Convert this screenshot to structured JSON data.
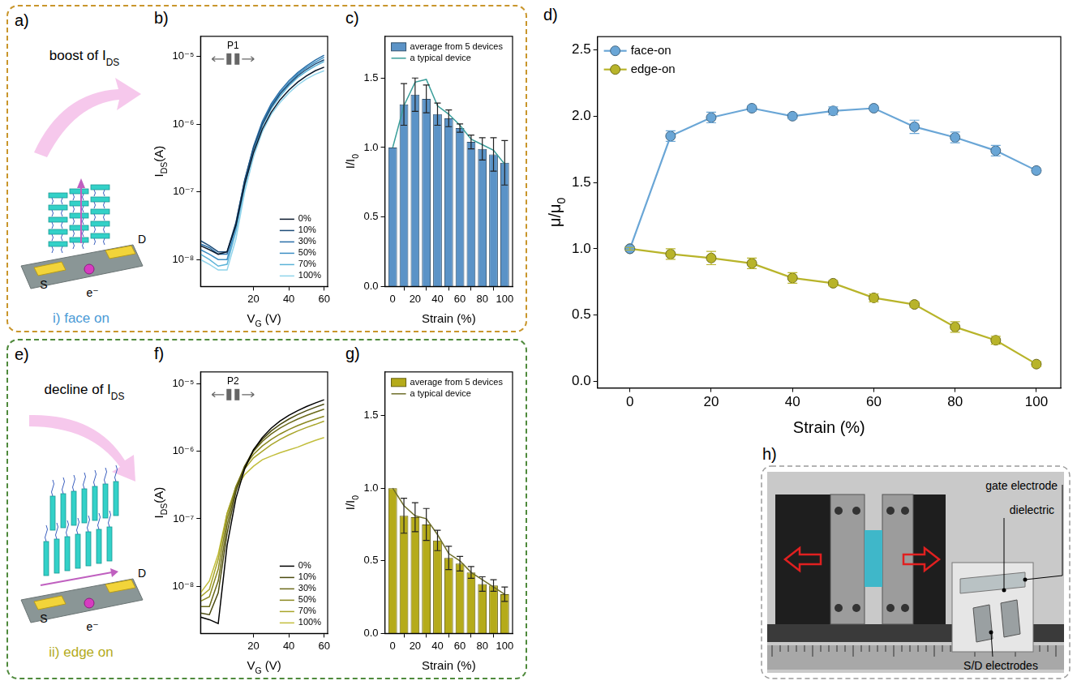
{
  "chart_data": [
    {
      "panel": "b)",
      "type": "line",
      "log": "y",
      "grid": false,
      "legend": "lower right",
      "annotations": [
        "P1"
      ],
      "xlabel": {
        "text": "V",
        "subscript": "G",
        "suffix": " (V)"
      },
      "ylabel": {
        "text": "I",
        "subscript": "DS",
        "suffix": "(A)"
      },
      "x": [
        -10,
        -5,
        0,
        5,
        10,
        15,
        20,
        25,
        30,
        35,
        40,
        45,
        50,
        55,
        60
      ],
      "xlim": [
        -10,
        62
      ],
      "xticks": [
        20,
        40,
        60
      ],
      "ylim": [
        4e-09,
        2e-05
      ],
      "yticks": [
        {
          "value": 1e-08,
          "label": "10⁻⁸"
        },
        {
          "value": 1e-07,
          "label": "10⁻⁷"
        },
        {
          "value": 1e-06,
          "label": "10⁻⁶"
        },
        {
          "value": 1e-05,
          "label": "10⁻⁵"
        }
      ],
      "series": [
        {
          "name": "0%",
          "color": "#0b1a2e",
          "values": [
            1.6e-08,
            1.4e-08,
            1.2e-08,
            1.3e-08,
            3.2e-08,
            1.3e-07,
            3.8e-07,
            8.5e-07,
            1.5e-06,
            2.3e-06,
            3.2e-06,
            4.2e-06,
            5.2e-06,
            6.2e-06,
            7e-06
          ]
        },
        {
          "name": "10%",
          "color": "#1f4e79",
          "values": [
            1.9e-08,
            1.6e-08,
            1.3e-08,
            1.3e-08,
            3.5e-08,
            1.5e-07,
            4.5e-07,
            1e-06,
            1.8e-06,
            2.8e-06,
            3.9e-06,
            5.2e-06,
            6.5e-06,
            7.8e-06,
            9e-06
          ]
        },
        {
          "name": "30%",
          "color": "#2a6fa8",
          "values": [
            1.7e-08,
            1.5e-08,
            1.2e-08,
            1.2e-08,
            3.4e-08,
            1.5e-07,
            4.7e-07,
            1.1e-06,
            2e-06,
            3.1e-06,
            4.4e-06,
            5.8e-06,
            7.3e-06,
            8.9e-06,
            1.05e-05
          ]
        },
        {
          "name": "50%",
          "color": "#3d8fc4",
          "values": [
            1.4e-08,
            1.2e-08,
            1e-08,
            1e-08,
            3e-08,
            1.4e-07,
            4.4e-07,
            1e-06,
            1.9e-06,
            2.9e-06,
            4.1e-06,
            5.5e-06,
            6.9e-06,
            8.3e-06,
            9.8e-06
          ]
        },
        {
          "name": "70%",
          "color": "#5bb3d8",
          "values": [
            1.2e-08,
            1e-08,
            8e-09,
            8.5e-09,
            2.6e-08,
            1.2e-07,
            4e-07,
            9.5e-07,
            1.7e-06,
            2.6e-06,
            3.7e-06,
            4.9e-06,
            6.1e-06,
            7.3e-06,
            8.5e-06
          ]
        },
        {
          "name": "100%",
          "color": "#8fd3ea",
          "values": [
            1e-08,
            8.5e-09,
            7e-09,
            7e-09,
            2e-08,
            1e-07,
            3.3e-07,
            7.8e-07,
            1.4e-06,
            2.1e-06,
            2.9e-06,
            3.8e-06,
            4.7e-06,
            5.5e-06,
            6.2e-06
          ]
        }
      ]
    },
    {
      "panel": "c)",
      "type": "bar",
      "grid": false,
      "legend": "upper left",
      "xlabel": "Strain (%)",
      "ylabel": {
        "text": "I/I",
        "subscript": "0"
      },
      "x": [
        0,
        10,
        20,
        30,
        40,
        50,
        60,
        70,
        80,
        90,
        100
      ],
      "xlim": [
        -7,
        107
      ],
      "xticks": [
        0,
        20,
        40,
        60,
        80,
        100
      ],
      "ylim": [
        0,
        1.8
      ],
      "yticks": [
        {
          "value": 0,
          "label": "0.0"
        },
        {
          "value": 0.5,
          "label": "0.5"
        },
        {
          "value": 1,
          "label": "1.0"
        },
        {
          "value": 1.5,
          "label": "1.5"
        }
      ],
      "series": [
        {
          "name": "average from 5 devices",
          "type": "bar",
          "color": "#5b93c7",
          "values": [
            1.0,
            1.31,
            1.38,
            1.35,
            1.24,
            1.21,
            1.14,
            1.04,
            0.99,
            0.95,
            0.89
          ],
          "errors": [
            0,
            0.15,
            0.12,
            0.1,
            0.08,
            0.06,
            0.03,
            0.05,
            0.08,
            0.12,
            0.16
          ]
        },
        {
          "name": "a typical device",
          "type": "line",
          "color": "#3a9e9a",
          "values": [
            1.0,
            1.3,
            1.47,
            1.49,
            1.3,
            1.24,
            1.16,
            1.06,
            1.02,
            0.98,
            0.88
          ]
        }
      ]
    },
    {
      "panel": "d)",
      "type": "line",
      "grid": false,
      "legend": "upper left",
      "xlabel": "Strain (%)",
      "ylabel": {
        "text": "μ/μ",
        "subscript": "0"
      },
      "x": [
        0,
        10,
        20,
        30,
        40,
        50,
        60,
        70,
        80,
        90,
        100
      ],
      "xlim": [
        -8,
        106
      ],
      "xticks": [
        0,
        20,
        40,
        60,
        80,
        100
      ],
      "ylim": [
        -0.05,
        2.6
      ],
      "yticks": [
        {
          "value": 0,
          "label": "0.0"
        },
        {
          "value": 0.5,
          "label": "0.5"
        },
        {
          "value": 1,
          "label": "1.0"
        },
        {
          "value": 1.5,
          "label": "1.5"
        },
        {
          "value": 2,
          "label": "2.0"
        },
        {
          "value": 2.5,
          "label": "2.5"
        }
      ],
      "series": [
        {
          "name": "face-on",
          "color": "#6aa6d6",
          "marker": "circle",
          "values": [
            1.0,
            1.85,
            1.99,
            2.06,
            2.0,
            2.04,
            2.06,
            1.92,
            1.84,
            1.74,
            1.59
          ],
          "errors": [
            0.01,
            0.04,
            0.04,
            0.02,
            0.02,
            0.03,
            0.01,
            0.05,
            0.04,
            0.04,
            0.01
          ]
        },
        {
          "name": "edge-on",
          "color": "#b8b42a",
          "marker": "circle",
          "values": [
            1.0,
            0.96,
            0.93,
            0.89,
            0.78,
            0.74,
            0.63,
            0.58,
            0.41,
            0.31,
            0.13
          ],
          "errors": [
            0.01,
            0.04,
            0.05,
            0.04,
            0.04,
            0.02,
            0.03,
            0.02,
            0.04,
            0.03,
            0.02
          ]
        }
      ]
    },
    {
      "panel": "f)",
      "type": "line",
      "log": "y",
      "grid": false,
      "legend": "lower right",
      "annotations": [
        "P2"
      ],
      "xlabel": {
        "text": "V",
        "subscript": "G",
        "suffix": " (V)"
      },
      "ylabel": {
        "text": "I",
        "subscript": "DS",
        "suffix": "(A)"
      },
      "x": [
        -10,
        -5,
        0,
        5,
        10,
        15,
        20,
        25,
        30,
        35,
        40,
        45,
        50,
        55,
        60
      ],
      "xlim": [
        -10,
        62
      ],
      "xticks": [
        20,
        40,
        60
      ],
      "ylim": [
        2e-09,
        1.5e-05
      ],
      "yticks": [
        {
          "value": 1e-08,
          "label": "10⁻⁸"
        },
        {
          "value": 1e-07,
          "label": "10⁻⁷"
        },
        {
          "value": 1e-06,
          "label": "10⁻⁶"
        },
        {
          "value": 1e-05,
          "label": "10⁻⁵"
        }
      ],
      "series": [
        {
          "name": "0%",
          "color": "#000000",
          "values": [
            3.5e-09,
            3.2e-09,
            2.8e-09,
            4e-08,
            2e-07,
            5.5e-07,
            1.05e-06,
            1.6e-06,
            2.2e-06,
            2.8e-06,
            3.4e-06,
            4e-06,
            4.6e-06,
            5.2e-06,
            5.8e-06
          ]
        },
        {
          "name": "10%",
          "color": "#4a4a10",
          "values": [
            4e-09,
            3.8e-09,
            8e-09,
            6e-08,
            2.5e-07,
            6e-07,
            1.05e-06,
            1.5e-06,
            2e-06,
            2.5e-06,
            3e-06,
            3.5e-06,
            4e-06,
            4.5e-06,
            5e-06
          ]
        },
        {
          "name": "30%",
          "color": "#6b6a1a",
          "values": [
            5e-09,
            5e-09,
            1.2e-08,
            8e-08,
            2.8e-07,
            6e-07,
            1e-06,
            1.4e-06,
            1.8e-06,
            2.2e-06,
            2.6e-06,
            3e-06,
            3.4e-06,
            3.8e-06,
            4.2e-06
          ]
        },
        {
          "name": "50%",
          "color": "#8a8820",
          "values": [
            6e-09,
            7e-09,
            1.8e-08,
            1e-07,
            3e-07,
            6e-07,
            9e-07,
            1.2e-06,
            1.5e-06,
            1.8e-06,
            2.1e-06,
            2.4e-06,
            2.7e-06,
            3e-06,
            3.3e-06
          ]
        },
        {
          "name": "70%",
          "color": "#a8a52a",
          "values": [
            7e-09,
            9e-09,
            2.5e-08,
            1.2e-07,
            3e-07,
            5.5e-07,
            8e-07,
            1e-06,
            1.25e-06,
            1.5e-06,
            1.75e-06,
            2e-06,
            2.25e-06,
            2.5e-06,
            2.8e-06
          ]
        },
        {
          "name": "100%",
          "color": "#c2be3c",
          "values": [
            8e-09,
            1.2e-08,
            3e-08,
            1.2e-07,
            2.8e-07,
            4.5e-07,
            6e-07,
            7.5e-07,
            8.5e-07,
            9.5e-07,
            1.05e-06,
            1.15e-06,
            1.3e-06,
            1.45e-06,
            1.6e-06
          ]
        }
      ]
    },
    {
      "panel": "g)",
      "type": "bar",
      "grid": false,
      "legend": "upper left",
      "xlabel": "Strain (%)",
      "ylabel": {
        "text": "I/I",
        "subscript": "0"
      },
      "x": [
        0,
        10,
        20,
        30,
        40,
        50,
        60,
        70,
        80,
        90,
        100
      ],
      "xlim": [
        -7,
        107
      ],
      "xticks": [
        0,
        20,
        40,
        60,
        80,
        100
      ],
      "ylim": [
        0,
        1.8
      ],
      "yticks": [
        {
          "value": 0,
          "label": "0.0"
        },
        {
          "value": 0.5,
          "label": "0.5"
        },
        {
          "value": 1,
          "label": "1.0"
        },
        {
          "value": 1.5,
          "label": "1.5"
        }
      ],
      "series": [
        {
          "name": "average from 5 devices",
          "type": "bar",
          "color": "#b5ab1a",
          "values": [
            1.0,
            0.81,
            0.8,
            0.75,
            0.64,
            0.52,
            0.48,
            0.42,
            0.34,
            0.33,
            0.27
          ],
          "errors": [
            0,
            0.12,
            0.1,
            0.11,
            0.07,
            0.08,
            0.05,
            0.04,
            0.05,
            0.04,
            0.05
          ]
        },
        {
          "name": "a typical device",
          "type": "line",
          "color": "#6e6e2a",
          "values": [
            1.0,
            0.88,
            0.81,
            0.79,
            0.68,
            0.55,
            0.5,
            0.42,
            0.37,
            0.32,
            0.27
          ]
        }
      ]
    }
  ],
  "diagrams": [
    {
      "panel": "a)",
      "heading": {
        "text": "boost of I",
        "subscript": "DS"
      },
      "source": "S",
      "drain": "D",
      "carrier": "e⁻",
      "caption": "i) face on"
    },
    {
      "panel": "e)",
      "heading": {
        "text": "decline of I",
        "subscript": "DS"
      },
      "source": "S",
      "drain": "D",
      "carrier": "e⁻",
      "caption": "ii) edge on"
    }
  ],
  "photo": {
    "panel": "h)",
    "labels": [
      "gate electrode",
      "dielectric",
      "S/D electrodes"
    ]
  }
}
